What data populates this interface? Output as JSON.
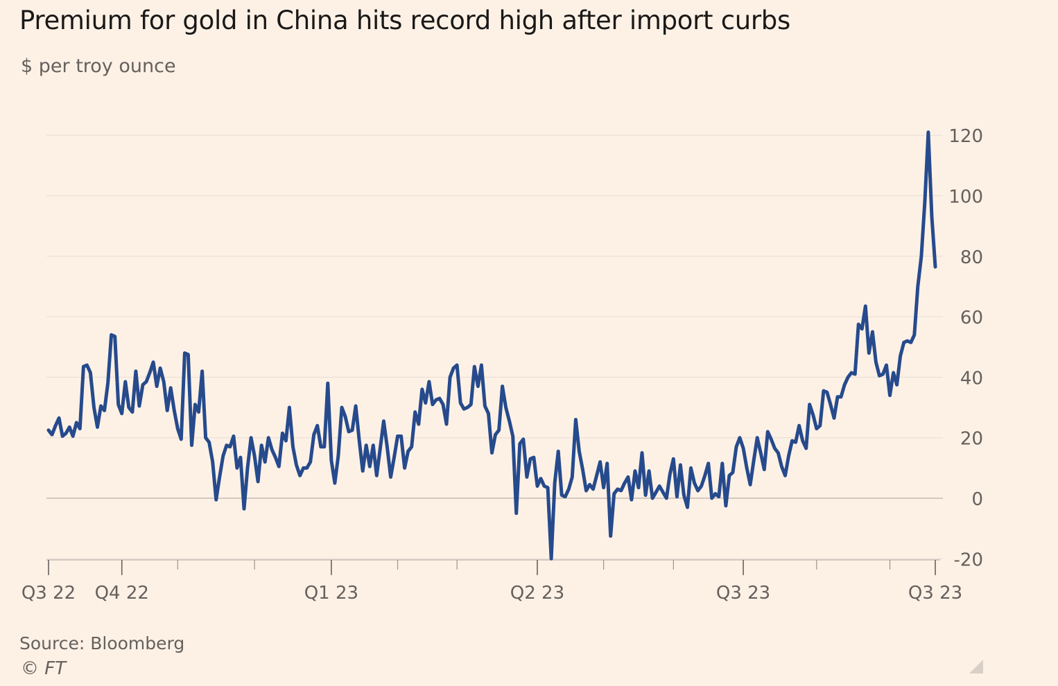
{
  "chart_data": {
    "type": "line",
    "title": "Premium for gold in China hits record high after import curbs",
    "subtitle": "$ per troy ounce",
    "source": "Source: Bloomberg",
    "credit": "© FT",
    "xlabel": "",
    "ylabel": "$ per troy ounce",
    "ylim": [
      -20,
      120
    ],
    "yticks": [
      120,
      100,
      80,
      60,
      40,
      20,
      0,
      -20
    ],
    "ytick_labels": [
      "120",
      "100",
      "80",
      "60",
      "40",
      "20",
      "0",
      "-20"
    ],
    "xticks": [
      {
        "label": "Q3 22",
        "pos": 0
      },
      {
        "label": "Q4 22",
        "pos": 21
      },
      {
        "label": "Q1 23",
        "pos": 81
      },
      {
        "label": "Q2 23",
        "pos": 140
      },
      {
        "label": "Q3 23",
        "pos": 199
      },
      {
        "label": "Q3 23",
        "pos": 254
      }
    ],
    "minor_ticks": [
      37,
      59,
      100,
      117,
      159,
      179,
      220,
      241
    ],
    "legend": "none",
    "grid": true,
    "colors": {
      "line": "#264a8c",
      "grid": "#e6ddd4",
      "zero": "#c6bcb4",
      "tick": "#66605c"
    },
    "series": [
      {
        "name": "Premium",
        "values": [
          22.5,
          21,
          24,
          26.5,
          20.5,
          21.5,
          23.5,
          20.5,
          25,
          23,
          43.5,
          44,
          41.5,
          30,
          23.5,
          30.5,
          29,
          38,
          54,
          53.5,
          31,
          28,
          38.5,
          30,
          28.5,
          42,
          30.5,
          37.5,
          38.5,
          41.5,
          45,
          37,
          43,
          38.5,
          29,
          36.5,
          29,
          23,
          19.5,
          48,
          47.5,
          17.5,
          31,
          28.5,
          42,
          20,
          18.5,
          12,
          -0.5,
          7,
          14,
          17.5,
          17,
          20.5,
          10,
          13.5,
          -3.5,
          10,
          20,
          14,
          5.5,
          17.5,
          12,
          20,
          16,
          13.5,
          10.5,
          21.5,
          19,
          30,
          17,
          11,
          7.5,
          10,
          10,
          12,
          21,
          24,
          17,
          17,
          38,
          12.5,
          5,
          14,
          30,
          27,
          22,
          22.5,
          30.5,
          19,
          9,
          17.5,
          10.5,
          17.5,
          7.5,
          16.5,
          25.5,
          17,
          7,
          13.5,
          20.5,
          20.5,
          10,
          15.5,
          17,
          28.5,
          24.5,
          36,
          31.5,
          38.5,
          31,
          32.5,
          33,
          31,
          24.5,
          40,
          43,
          44,
          31.5,
          29.5,
          30,
          31,
          43.5,
          37,
          44,
          30.5,
          28,
          15,
          21,
          22.5,
          37,
          30,
          25.5,
          20.5,
          -5,
          18,
          19.5,
          7,
          13,
          13.5,
          4,
          6.5,
          4,
          3.5,
          -20,
          5,
          15.5,
          1,
          0.5,
          3,
          7,
          26,
          15.5,
          9.5,
          2.5,
          4.5,
          3,
          7.5,
          12,
          3.5,
          11.5,
          -12.5,
          1.5,
          3,
          2.5,
          5,
          7,
          -0.5,
          9,
          3.5,
          15,
          1,
          9,
          0,
          2,
          4,
          2,
          0,
          8,
          13,
          0.5,
          11,
          1,
          -3,
          10,
          5,
          2.5,
          4,
          7.5,
          11.5,
          0,
          1.5,
          0.5,
          11.5,
          -2.5,
          7.5,
          8.5,
          17,
          20,
          16.5,
          10,
          4.5,
          12.5,
          20,
          15,
          9.5,
          22,
          19.5,
          16.5,
          15,
          10.5,
          7.5,
          14,
          19,
          18.5,
          24,
          19,
          16.5,
          31,
          27.5,
          23,
          24,
          35.5,
          35,
          31,
          26.5,
          33.5,
          33.5,
          37.5,
          40,
          41.5,
          41,
          57.5,
          56,
          63.5,
          48,
          55,
          45,
          40.5,
          41,
          44,
          34,
          41.5,
          37.5,
          47,
          51.5,
          52,
          51.5,
          54,
          70,
          80,
          98,
          121,
          93,
          76.5
        ]
      }
    ]
  }
}
